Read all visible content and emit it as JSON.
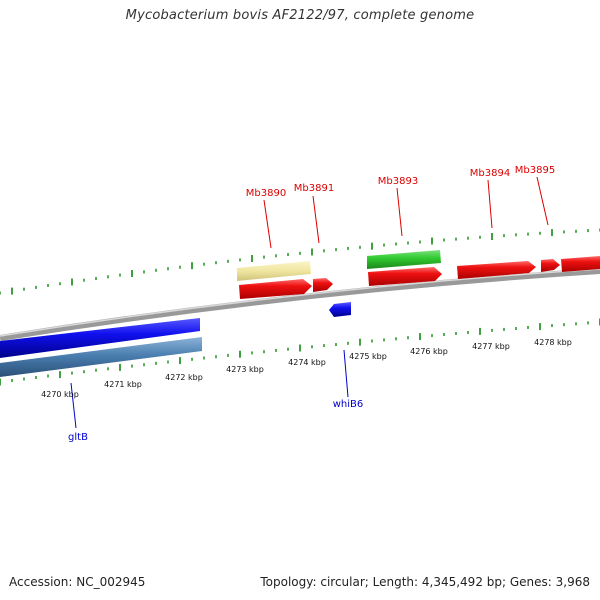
{
  "title": "Mycobacterium bovis AF2122/97, complete genome",
  "footer": {
    "accession": "Accession: NC_002945",
    "topology": "Topology: circular; Length: 4,345,492 bp; Genes: 3,968"
  },
  "ticks": [
    "4270 kbp",
    "4271 kbp",
    "4272 kbp",
    "4273 kbp",
    "4274 kbp",
    "4275 kbp",
    "4276 kbp",
    "4277 kbp",
    "4278 kbp"
  ],
  "genes_forward": [
    {
      "label": "Mb3890",
      "color": "#dd0000"
    },
    {
      "label": "Mb3891",
      "color": "#dd0000"
    },
    {
      "label": "Mb3893",
      "color": "#dd0000"
    },
    {
      "label": "Mb3894",
      "color": "#dd0000"
    },
    {
      "label": "Mb3895",
      "color": "#dd0000"
    }
  ],
  "genes_reverse": [
    {
      "label": "whiB6",
      "color": "#0000cc"
    },
    {
      "label": "gltB",
      "color": "#0000cc"
    }
  ],
  "colors": {
    "cds_forward": "#ee1111",
    "cds_reverse": "#1111ee",
    "rrna_tan": "#f0e6a0",
    "misc_green": "#33cc33",
    "steelblue": "#4a7fb0",
    "backbone": "#888888",
    "tick": "#118811"
  }
}
